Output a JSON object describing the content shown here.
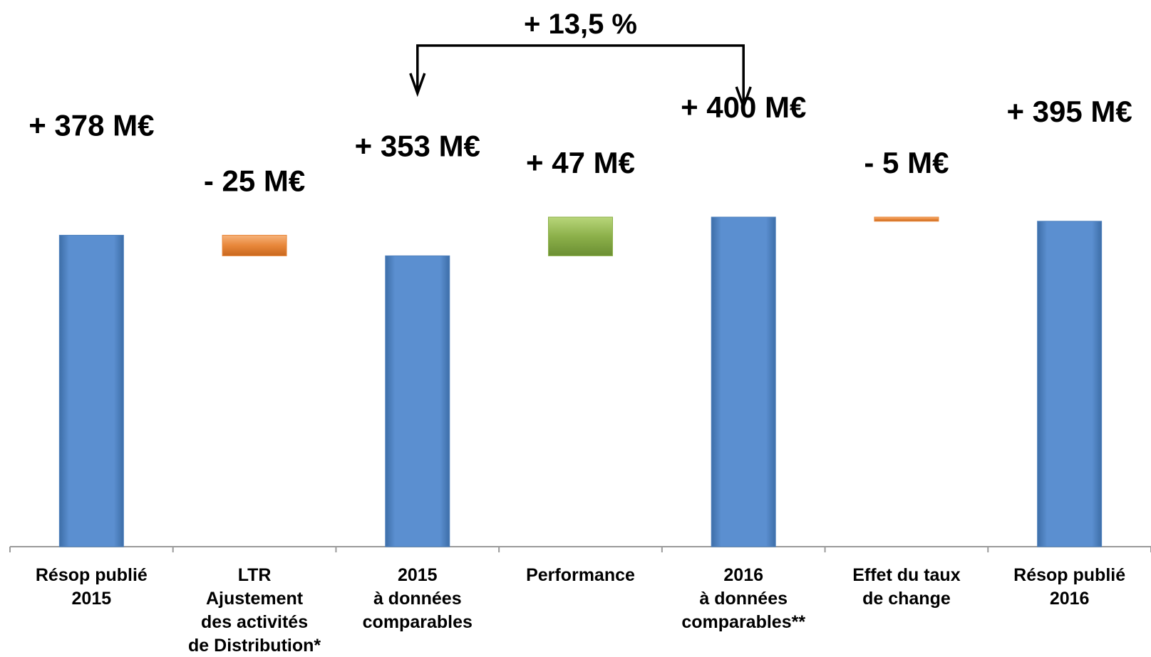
{
  "chart_data": {
    "type": "bar",
    "subtype": "waterfall",
    "unit": "M€",
    "categories": [
      [
        "Résop publié",
        "2015"
      ],
      [
        "LTR",
        "Ajustement",
        "des activités",
        "de Distribution*"
      ],
      [
        "2015",
        "à données",
        "comparables"
      ],
      [
        "Performance"
      ],
      [
        "2016",
        "à données",
        "comparables**"
      ],
      [
        "Effet du taux",
        "de change"
      ],
      [
        "Résop publié",
        "2016"
      ]
    ],
    "bars": [
      {
        "kind": "total",
        "start": 0,
        "end": 378,
        "label": "+ 378 M€",
        "color": "#4f81bd"
      },
      {
        "kind": "delta",
        "start": 378,
        "end": 353,
        "label": "- 25 M€",
        "color": "#e8873a"
      },
      {
        "kind": "total",
        "start": 0,
        "end": 353,
        "label": "+ 353 M€",
        "color": "#4f81bd"
      },
      {
        "kind": "delta",
        "start": 353,
        "end": 400,
        "label": "+ 47 M€",
        "color": "#8cb04a"
      },
      {
        "kind": "total",
        "start": 0,
        "end": 400,
        "label": "+ 400 M€",
        "color": "#4f81bd"
      },
      {
        "kind": "delta",
        "start": 400,
        "end": 395,
        "label": "- 5 M€",
        "color": "#e8873a"
      },
      {
        "kind": "total",
        "start": 0,
        "end": 395,
        "label": "+ 395 M€",
        "color": "#4f81bd"
      }
    ],
    "ylim": [
      0,
      400
    ],
    "annotation": {
      "text": "+ 13,5 %",
      "from_category": 2,
      "to_category": 4
    },
    "grid": false,
    "legend": "none"
  }
}
